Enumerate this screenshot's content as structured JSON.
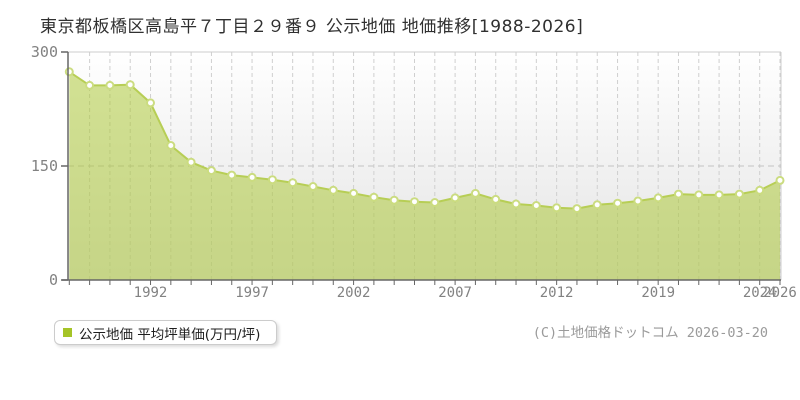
{
  "title": "東京都板橋区高島平７丁目２９番９ 公示地価 地価推移[1988-2026]",
  "legend": {
    "label": "公示地価 平均坪単価(万円/坪)",
    "swatch_color": "#a5c427"
  },
  "copyright": "(C)土地価格ドットコム 2026-03-20",
  "chart_data": {
    "type": "area",
    "title": "東京都板橋区高島平７丁目２９番９ 公示地価 地価推移[1988-2026]",
    "series": [
      {
        "name": "公示地価 平均坪単価(万円/坪)",
        "values": [
          274,
          256,
          256,
          257,
          233,
          177,
          155,
          144,
          138,
          135,
          132,
          128,
          123,
          118,
          114,
          109,
          105,
          103,
          102,
          108,
          114,
          106,
          100,
          98,
          95,
          94,
          99,
          101,
          104,
          108,
          113,
          112,
          112,
          113,
          118,
          131
        ]
      }
    ],
    "unit": "万円/坪",
    "n_points": 36,
    "x_start_year": 1988,
    "x_end_year": 2026,
    "x_tick_labels": [
      "1992",
      "1997",
      "2002",
      "2007",
      "2012",
      "2019",
      "2024",
      "2026"
    ],
    "x_tick_point_indices": [
      4,
      9,
      14,
      19,
      24,
      29,
      34,
      35
    ],
    "ylim": [
      0,
      300
    ],
    "yticks": [
      0,
      150,
      300
    ],
    "grid": true,
    "legend_position": "bottom-left",
    "style": {
      "fill_color": "rgba(170,200,50,0.52)",
      "line_color": "#b7ce55",
      "marker_fill": "#ffffff",
      "marker_ring": "#cbdc80",
      "grid_color": "#cfcfcf",
      "hgrid_color": "#c3c3c3",
      "axis_color": "#666666",
      "border_color": "#cccccc",
      "tick_label_color": "#828282",
      "plot_bg_top": "#ffffff",
      "plot_bg_bottom": "#e3e3e3"
    }
  }
}
